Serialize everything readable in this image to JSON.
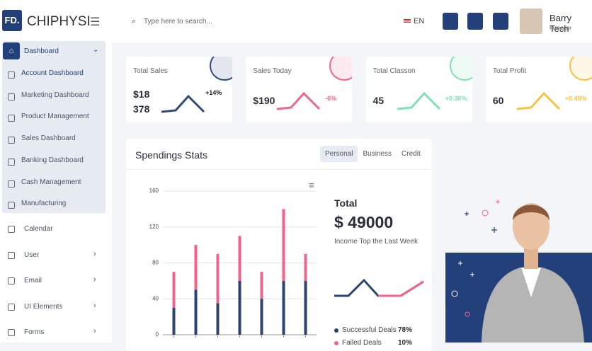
{
  "brand": {
    "logo": "FD.",
    "name": "CHIPHYSI"
  },
  "topbar": {
    "search_placeholder": "Type here to search...",
    "language": "EN",
    "user": {
      "name": "Barry Tech",
      "role": "Manager"
    }
  },
  "sidebar": {
    "active": "Dashboard",
    "submenu": [
      "Account Dashboard",
      "Marketing Dashboard",
      "Product Management",
      "Sales Dashboard",
      "Banking Dashboard",
      "Cash Management",
      "Manufacturing"
    ],
    "items": [
      {
        "label": "Calendar",
        "arrow": false
      },
      {
        "label": "User",
        "arrow": true
      },
      {
        "label": "Email",
        "arrow": true
      },
      {
        "label": "UI Elements",
        "arrow": true
      },
      {
        "label": "Forms",
        "arrow": true
      }
    ]
  },
  "stats": [
    {
      "title": "Total Sales",
      "value": "$18 378",
      "change": "+14%",
      "color": "#2f4a7a"
    },
    {
      "title": "Sales Today",
      "value": "$190",
      "change": "-6%",
      "color": "#f0648c"
    },
    {
      "title": "Total Classon",
      "value": "45",
      "change": "+0.36%",
      "color": "#7ee0b5"
    },
    {
      "title": "Total Profit",
      "value": "60",
      "change": "+0.45%",
      "color": "#f5c242"
    }
  ],
  "spendings": {
    "title": "Spendings Stats",
    "tabs": [
      "Personal",
      "Business",
      "Credit"
    ],
    "chart": {
      "type": "bar",
      "stacked": true,
      "ylim": [
        0,
        160
      ],
      "yticks": [
        0,
        40,
        80,
        120,
        160
      ],
      "grid": true,
      "series": [
        {
          "color": "#2d4373",
          "values": [
            30,
            50,
            35,
            60,
            40,
            60,
            60
          ]
        },
        {
          "color": "#f0648c",
          "values": [
            40,
            50,
            55,
            50,
            30,
            80,
            30
          ]
        }
      ]
    }
  },
  "summary": {
    "title": "Total",
    "amount": "$ 49000",
    "caption": "Income Top the Last Week",
    "legend": [
      {
        "label": "Successful Deals",
        "value": "78%",
        "color": "#2d4373"
      },
      {
        "label": "Failed Deals",
        "value": "10%",
        "color": "#f0648c"
      }
    ]
  }
}
